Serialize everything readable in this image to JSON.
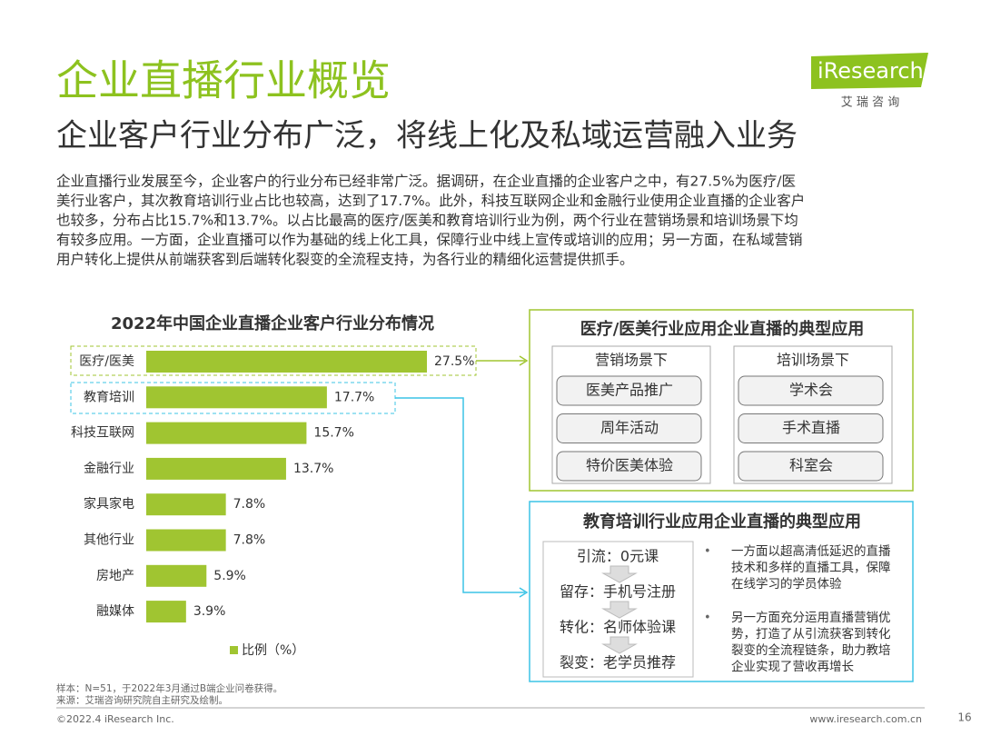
{
  "header": {
    "title": "企业直播行业概览",
    "subtitle": "企业客户行业分布广泛，将线上化及私域运营融入业务",
    "logo": "iResearch",
    "logo_sub": "艾 瑞 咨 询"
  },
  "body": [
    "企业直播行业发展至今，企业客户的行业分布已经非常广泛。据调研，在企业直播的企业客户之中，有27.5%为医疗/医",
    "美行业客户，其次教育培训行业占比也较高，达到了17.7%。此外，科技互联网企业和金融行业使用企业直播的企业客户",
    "也较多，分布占比15.7%和13.7%。以占比最高的医疗/医美和教育培训行业为例，两个行业在营销场景和培训场景下均",
    "有较多应用。一方面，企业直播可以作为基础的线上化工具，保障行业中线上宣传或培训的应用；另一方面，在私域营销",
    "用户转化上提供从前端获客到后端转化裂变的全流程支持，为各行业的精细化运营提供抓手。"
  ],
  "chart_data": {
    "type": "bar",
    "orientation": "horizontal",
    "title": "2022年中国企业直播企业客户行业分布情况",
    "categories": [
      "医疗/医美",
      "教育培训",
      "科技互联网",
      "金融行业",
      "家具家电",
      "其他行业",
      "房地产",
      "融媒体"
    ],
    "series": [
      {
        "name": "比例（%）",
        "color": "#a0c531",
        "values": [
          27.5,
          17.7,
          15.7,
          13.7,
          7.8,
          7.8,
          5.9,
          3.9
        ],
        "value_labels": [
          "27.5%",
          "17.7%",
          "15.7%",
          "13.7%",
          "7.8%",
          "7.8%",
          "5.9%",
          "3.9%"
        ]
      }
    ]
  },
  "panel_medical": {
    "title": "医疗/医美行业应用企业直播的典型应用",
    "groups": [
      {
        "title": "营销场景下",
        "items": [
          "医美产品推广",
          "周年活动",
          "特价医美体验"
        ]
      },
      {
        "title": "培训场景下",
        "items": [
          "学术会",
          "手术直播",
          "科室会"
        ]
      }
    ]
  },
  "panel_education": {
    "title": "教育培训行业应用企业直播的典型应用",
    "steps": [
      "引流：0元课",
      "留存：手机号注册",
      "转化：名师体验课",
      "裂变：老学员推荐"
    ],
    "bullets": [
      [
        "一方面以超高清低延迟的直播",
        "技术和多样的直播工具，保障",
        "在线学习的学员体验"
      ],
      [
        "另一方面充分运用直播营销优",
        "势，打造了从引流获客到转化",
        "裂变的全流程链条，助力教培",
        "企业实现了营收再增长"
      ]
    ]
  },
  "notes": [
    "样本：N=51，于2022年3月通过B端企业问卷获得。",
    "来源：艾瑞咨询研究院自主研究及绘制。"
  ],
  "footer": {
    "copyright": "©2022.4 iResearch Inc.",
    "url": "www.iresearch.com.cn",
    "page": "16"
  }
}
